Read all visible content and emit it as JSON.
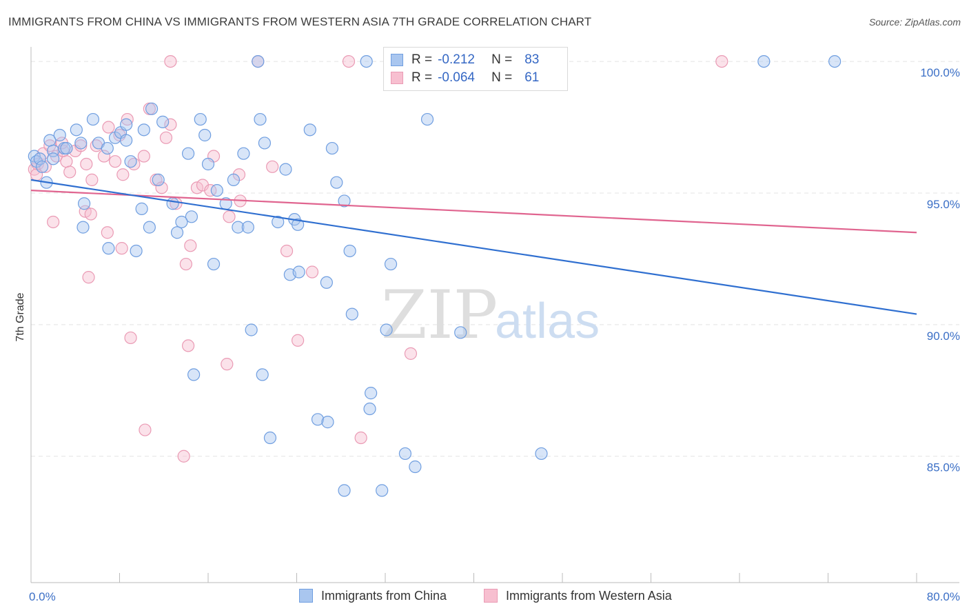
{
  "header": {
    "title": "IMMIGRANTS FROM CHINA VS IMMIGRANTS FROM WESTERN ASIA 7TH GRADE CORRELATION CHART",
    "source": "Source: ZipAtlas.com"
  },
  "watermark": {
    "zip": "ZIP",
    "atlas": "atlas"
  },
  "stats": {
    "china": {
      "r_label": "R =",
      "r_value": "-0.212",
      "n_label": "N =",
      "n_value": "83"
    },
    "wasia": {
      "r_label": "R =",
      "r_value": "-0.064",
      "n_label": "N =",
      "n_value": "61"
    }
  },
  "legend": {
    "china": "Immigrants from China",
    "wasia": "Immigrants from Western Asia"
  },
  "colors": {
    "china_fill": "#a9c6ef",
    "china_stroke": "#6f9ee0",
    "china_line": "#2f6fd0",
    "wasia_fill": "#f7bfd0",
    "wasia_stroke": "#ea9ab4",
    "wasia_line": "#e0648f",
    "tick_text": "#3b6fc6",
    "grid": "#e3e3e3"
  },
  "chart_data": {
    "type": "scatter",
    "title": "IMMIGRANTS FROM CHINA VS IMMIGRANTS FROM WESTERN ASIA 7TH GRADE CORRELATION CHART",
    "xlabel": "",
    "ylabel": "7th Grade",
    "xlim": [
      0,
      80
    ],
    "ylim": [
      80.2,
      100.5
    ],
    "x_tick_labels": [
      "0.0%",
      "80.0%"
    ],
    "y_ticks": [
      85,
      90,
      95,
      100
    ],
    "y_tick_labels": [
      "85.0%",
      "90.0%",
      "95.0%",
      "100.0%"
    ],
    "grid": "horizontal dashed",
    "legend_position": "bottom-center",
    "series": [
      {
        "name": "Immigrants from China",
        "r": -0.212,
        "n": 83,
        "trend": [
          [
            0,
            95.5
          ],
          [
            80,
            90.4
          ]
        ],
        "points": [
          [
            0.3,
            96.4
          ],
          [
            0.5,
            96.2
          ],
          [
            0.8,
            96.3
          ],
          [
            1.0,
            96.0
          ],
          [
            1.4,
            95.4
          ],
          [
            1.7,
            97.0
          ],
          [
            2.0,
            96.6
          ],
          [
            2.6,
            97.2
          ],
          [
            3.0,
            96.7
          ],
          [
            4.1,
            97.4
          ],
          [
            4.5,
            96.9
          ],
          [
            5.6,
            97.8
          ],
          [
            6.1,
            96.9
          ],
          [
            6.9,
            96.7
          ],
          [
            7.6,
            97.1
          ],
          [
            8.1,
            97.3
          ],
          [
            8.6,
            97.0
          ],
          [
            9.0,
            96.2
          ],
          [
            10.2,
            97.4
          ],
          [
            10.9,
            98.2
          ],
          [
            11.9,
            97.7
          ],
          [
            12.8,
            94.6
          ],
          [
            13.2,
            93.5
          ],
          [
            14.2,
            96.5
          ],
          [
            14.5,
            94.1
          ],
          [
            11.5,
            95.5
          ],
          [
            7.0,
            92.9
          ],
          [
            9.5,
            92.8
          ],
          [
            10.0,
            94.4
          ],
          [
            10.7,
            93.7
          ],
          [
            13.6,
            93.9
          ],
          [
            4.8,
            94.6
          ],
          [
            4.7,
            93.7
          ],
          [
            2.0,
            96.3
          ],
          [
            15.3,
            97.8
          ],
          [
            15.7,
            97.2
          ],
          [
            16.0,
            96.1
          ],
          [
            16.8,
            95.1
          ],
          [
            17.6,
            94.6
          ],
          [
            18.3,
            95.5
          ],
          [
            18.7,
            93.7
          ],
          [
            19.2,
            96.5
          ],
          [
            19.6,
            93.7
          ],
          [
            20.7,
            97.8
          ],
          [
            21.1,
            96.9
          ],
          [
            22.3,
            93.9
          ],
          [
            23.0,
            95.9
          ],
          [
            23.4,
            91.9
          ],
          [
            23.8,
            94.0
          ],
          [
            24.1,
            93.8
          ],
          [
            25.2,
            97.4
          ],
          [
            19.9,
            89.8
          ],
          [
            20.9,
            88.1
          ],
          [
            16.5,
            92.3
          ],
          [
            14.7,
            88.1
          ],
          [
            27.2,
            96.7
          ],
          [
            26.7,
            91.6
          ],
          [
            27.6,
            95.4
          ],
          [
            28.3,
            94.7
          ],
          [
            28.8,
            92.8
          ],
          [
            29.0,
            90.4
          ],
          [
            30.3,
            100.0
          ],
          [
            32.5,
            92.3
          ],
          [
            33.5,
            100.0
          ],
          [
            35.8,
            97.8
          ],
          [
            38.8,
            89.7
          ],
          [
            32.1,
            89.8
          ],
          [
            30.7,
            87.4
          ],
          [
            30.6,
            86.8
          ],
          [
            25.9,
            86.4
          ],
          [
            26.8,
            86.3
          ],
          [
            21.6,
            85.7
          ],
          [
            33.8,
            85.1
          ],
          [
            34.7,
            84.6
          ],
          [
            46.1,
            85.1
          ],
          [
            28.3,
            83.7
          ],
          [
            31.7,
            83.7
          ],
          [
            66.2,
            100.0
          ],
          [
            72.6,
            100.0
          ],
          [
            20.5,
            100.0
          ],
          [
            8.6,
            97.6
          ],
          [
            3.2,
            96.7
          ],
          [
            24.2,
            92.0
          ]
        ]
      },
      {
        "name": "Immigrants from Western Asia",
        "r": -0.064,
        "n": 61,
        "trend": [
          [
            0,
            95.1
          ],
          [
            80,
            93.5
          ]
        ],
        "points": [
          [
            0.3,
            95.9
          ],
          [
            0.6,
            96.1
          ],
          [
            1.1,
            96.5
          ],
          [
            1.3,
            96.0
          ],
          [
            1.7,
            96.8
          ],
          [
            2.3,
            96.4
          ],
          [
            2.9,
            96.6
          ],
          [
            3.2,
            96.2
          ],
          [
            3.5,
            95.8
          ],
          [
            4.0,
            96.6
          ],
          [
            4.5,
            96.8
          ],
          [
            5.0,
            96.1
          ],
          [
            5.5,
            95.5
          ],
          [
            5.9,
            96.8
          ],
          [
            6.6,
            96.4
          ],
          [
            7.0,
            97.5
          ],
          [
            7.6,
            96.2
          ],
          [
            8.0,
            97.2
          ],
          [
            8.3,
            95.7
          ],
          [
            8.7,
            97.8
          ],
          [
            9.3,
            96.1
          ],
          [
            10.2,
            96.4
          ],
          [
            10.7,
            98.2
          ],
          [
            11.3,
            95.5
          ],
          [
            11.8,
            95.2
          ],
          [
            12.2,
            97.1
          ],
          [
            12.6,
            97.6
          ],
          [
            13.1,
            94.6
          ],
          [
            14.0,
            92.3
          ],
          [
            14.4,
            93.0
          ],
          [
            15.0,
            95.2
          ],
          [
            15.5,
            95.3
          ],
          [
            16.2,
            95.1
          ],
          [
            16.5,
            96.4
          ],
          [
            17.9,
            94.1
          ],
          [
            18.8,
            95.7
          ],
          [
            18.9,
            94.7
          ],
          [
            21.8,
            96.0
          ],
          [
            23.1,
            92.8
          ],
          [
            24.1,
            89.4
          ],
          [
            25.4,
            92.0
          ],
          [
            28.7,
            100.0
          ],
          [
            29.8,
            85.7
          ],
          [
            34.3,
            88.9
          ],
          [
            4.9,
            94.3
          ],
          [
            5.4,
            94.2
          ],
          [
            6.9,
            93.5
          ],
          [
            8.2,
            92.9
          ],
          [
            5.2,
            91.8
          ],
          [
            2.0,
            93.9
          ],
          [
            9.0,
            89.5
          ],
          [
            10.3,
            86.0
          ],
          [
            13.8,
            85.0
          ],
          [
            14.2,
            89.2
          ],
          [
            17.7,
            88.5
          ],
          [
            12.6,
            100.0
          ],
          [
            20.5,
            100.0
          ],
          [
            40.3,
            100.0
          ],
          [
            62.4,
            100.0
          ],
          [
            2.8,
            96.9
          ],
          [
            0.5,
            95.7
          ]
        ]
      }
    ]
  }
}
